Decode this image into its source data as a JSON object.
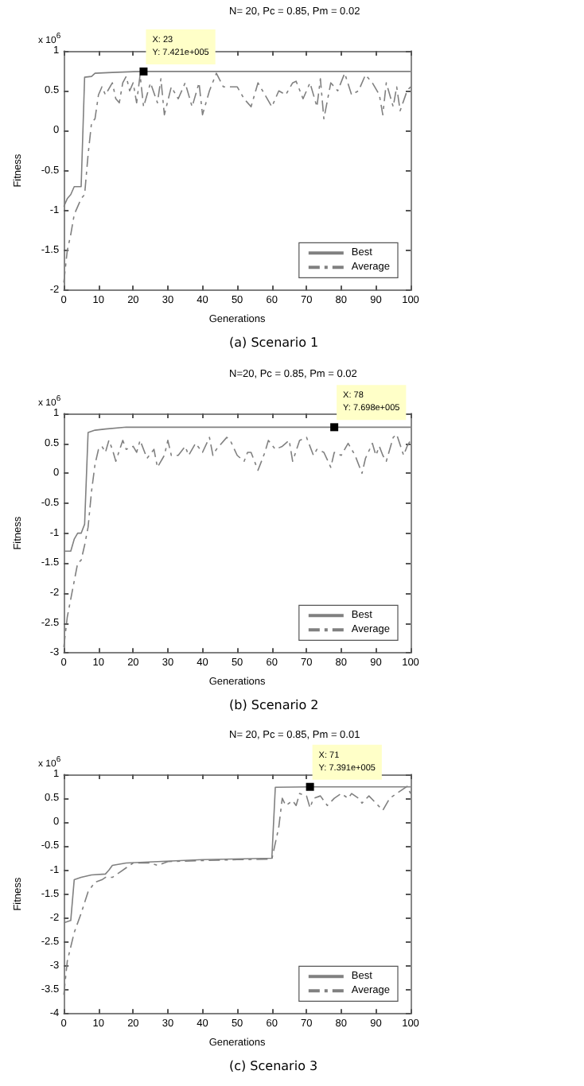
{
  "chart_data": [
    {
      "type": "line",
      "title": "N= 20, Pc = 0.85, Pm = 0.02",
      "subtitle": "(a) Scenario 1",
      "xlabel": "Generations",
      "ylabel": "Fitness",
      "annotations": [
        "x 10$^{6}$",
        {
          "text": "X: 23\nY: 7.421e+005",
          "x": 23,
          "y": 0.7421
        }
      ],
      "xlim": [
        0,
        100
      ],
      "xticks": [
        0,
        10,
        20,
        30,
        40,
        50,
        60,
        70,
        80,
        90,
        100
      ],
      "ylim": [
        -2,
        1
      ],
      "yticks": [
        -2,
        -1.5,
        -1,
        -0.5,
        0,
        0.5,
        1
      ],
      "grid": false,
      "legend": "bottom right",
      "marker": "none",
      "series": [
        {
          "name": "Best",
          "color": "#808080",
          "line_style": "solid",
          "x": [
            0,
            1,
            2,
            3,
            5,
            6,
            8,
            9,
            14,
            20,
            23,
            100
          ],
          "values": [
            -0.95,
            -0.85,
            -0.8,
            -0.7,
            -0.7,
            0.67,
            0.68,
            0.72,
            0.73,
            0.74,
            0.7421,
            0.7421
          ]
        },
        {
          "name": "Average",
          "color": "#808080",
          "line_style": "dashed",
          "x": [
            0,
            1,
            2,
            3,
            4,
            5,
            6,
            7,
            8,
            9,
            10,
            11,
            12,
            14,
            15,
            16,
            17,
            18,
            19,
            20,
            21,
            22,
            23,
            25,
            27,
            28,
            29,
            31,
            33,
            35,
            37,
            39,
            40,
            42,
            44,
            46,
            50,
            52,
            54,
            56,
            58,
            60,
            62,
            64,
            66,
            67,
            69,
            71,
            73,
            74,
            75,
            77,
            79,
            81,
            83,
            85,
            87,
            89,
            91,
            92,
            93,
            95,
            96,
            97,
            99,
            100
          ],
          "values": [
            -1.9,
            -1.5,
            -1.3,
            -1.05,
            -0.95,
            -0.85,
            -0.8,
            -0.3,
            0.1,
            0.15,
            0.45,
            0.55,
            0.45,
            0.6,
            0.4,
            0.35,
            0.6,
            0.68,
            0.5,
            0.6,
            0.35,
            0.7,
            0.3,
            0.6,
            0.35,
            0.65,
            0.2,
            0.55,
            0.4,
            0.6,
            0.3,
            0.6,
            0.2,
            0.5,
            0.72,
            0.55,
            0.55,
            0.4,
            0.3,
            0.6,
            0.45,
            0.3,
            0.5,
            0.45,
            0.6,
            0.62,
            0.4,
            0.6,
            0.3,
            0.65,
            0.15,
            0.6,
            0.5,
            0.72,
            0.45,
            0.5,
            0.7,
            0.6,
            0.45,
            0.2,
            0.6,
            0.3,
            0.55,
            0.25,
            0.5,
            0.55
          ]
        }
      ]
    },
    {
      "type": "line",
      "title": "N=20, Pc = 0.85, Pm = 0.02",
      "subtitle": "(b) Scenario 2",
      "xlabel": "Generations",
      "ylabel": "Fitness",
      "annotations": [
        "x 10$^{6}$",
        {
          "text": "X: 78\nY: 7.698e+005",
          "x": 78,
          "y": 0.7698
        }
      ],
      "xlim": [
        0,
        100
      ],
      "xticks": [
        0,
        10,
        20,
        30,
        40,
        50,
        60,
        70,
        80,
        90,
        100
      ],
      "ylim": [
        -3,
        1
      ],
      "yticks": [
        -3,
        -2.5,
        -2,
        -1.5,
        -1,
        -0.5,
        0,
        0.5,
        1
      ],
      "grid": false,
      "legend": "bottom right",
      "marker": "none",
      "series": [
        {
          "name": "Best",
          "color": "#808080",
          "line_style": "solid",
          "x": [
            0,
            2,
            3,
            4,
            5,
            6,
            7,
            9,
            12,
            18,
            78,
            100
          ],
          "values": [
            -1.3,
            -1.3,
            -1.1,
            -1.0,
            -1.0,
            -0.85,
            0.68,
            0.72,
            0.74,
            0.77,
            0.7698,
            0.7698
          ]
        },
        {
          "name": "Average",
          "color": "#808080",
          "line_style": "dashed",
          "x": [
            0,
            1,
            2,
            3,
            4,
            5,
            6,
            7,
            8,
            9,
            10,
            11,
            12,
            13,
            14,
            15,
            17,
            18,
            20,
            21,
            22,
            24,
            26,
            27,
            29,
            30,
            31,
            33,
            35,
            36,
            38,
            40,
            42,
            43,
            44,
            47,
            48,
            50,
            52,
            53,
            54,
            56,
            58,
            59,
            61,
            63,
            65,
            66,
            68,
            70,
            72,
            73,
            75,
            77,
            78,
            80,
            82,
            84,
            86,
            87,
            89,
            90,
            91,
            92,
            93,
            95,
            96,
            98,
            99,
            100
          ],
          "values": [
            -2.9,
            -2.4,
            -2.1,
            -1.8,
            -1.5,
            -1.45,
            -1.2,
            -0.9,
            -0.3,
            0.15,
            0.4,
            0.45,
            0.35,
            0.55,
            0.4,
            0.2,
            0.55,
            0.4,
            0.45,
            0.35,
            0.55,
            0.25,
            0.4,
            0.1,
            0.3,
            0.55,
            0.3,
            0.3,
            0.45,
            0.3,
            0.5,
            0.35,
            0.6,
            0.3,
            0.4,
            0.6,
            0.55,
            0.3,
            0.2,
            0.35,
            0.35,
            0.05,
            0.35,
            0.55,
            0.4,
            0.45,
            0.55,
            0.2,
            0.55,
            0.6,
            0.3,
            0.4,
            0.35,
            0.1,
            0.35,
            0.3,
            0.5,
            0.3,
            0.0,
            0.25,
            0.5,
            0.3,
            0.45,
            0.3,
            0.2,
            0.6,
            0.65,
            0.3,
            0.45,
            0.55
          ]
        }
      ]
    },
    {
      "type": "line",
      "title": "N= 20, Pc = 0.85, Pm = 0.01",
      "subtitle": "(c) Scenario 3",
      "xlabel": "Generations",
      "ylabel": "Fitness",
      "annotations": [
        "x 10$^{6}$",
        {
          "text": "X: 71\nY: 7.391e+005",
          "x": 71,
          "y": 0.7391
        }
      ],
      "xlim": [
        0,
        100
      ],
      "xticks": [
        0,
        10,
        20,
        30,
        40,
        50,
        60,
        70,
        80,
        90,
        100
      ],
      "ylim": [
        -4,
        1
      ],
      "yticks": [
        -4,
        -3.5,
        -3,
        -2.5,
        -2,
        -1.5,
        -1,
        -0.5,
        0,
        0.5,
        1
      ],
      "grid": false,
      "legend": "bottom right",
      "marker": "none",
      "series": [
        {
          "name": "Best",
          "color": "#808080",
          "line_style": "solid",
          "x": [
            0,
            2,
            3,
            5,
            8,
            12,
            13,
            14,
            18,
            40,
            60,
            61,
            71,
            100
          ],
          "values": [
            -2.1,
            -2.05,
            -1.2,
            -1.15,
            -1.1,
            -1.08,
            -1.0,
            -0.9,
            -0.85,
            -0.78,
            -0.75,
            0.73,
            0.7391,
            0.7391
          ]
        },
        {
          "name": "Average",
          "color": "#808080",
          "line_style": "dashed",
          "x": [
            0,
            1,
            3,
            5,
            7,
            9,
            11,
            12,
            14,
            16,
            18,
            20,
            25,
            27,
            30,
            40,
            50,
            60,
            62,
            63,
            64,
            66,
            67,
            68,
            70,
            71,
            72,
            74,
            76,
            78,
            80,
            82,
            83,
            85,
            86,
            88,
            90,
            92,
            94,
            96,
            98,
            99,
            100
          ],
          "values": [
            -3.6,
            -2.9,
            -2.3,
            -1.9,
            -1.45,
            -1.25,
            -1.2,
            -1.15,
            -1.15,
            -1.05,
            -0.95,
            -0.85,
            -0.85,
            -0.9,
            -0.82,
            -0.8,
            -0.78,
            -0.77,
            -0.1,
            0.5,
            0.35,
            0.45,
            0.35,
            0.6,
            0.55,
            0.3,
            0.5,
            0.55,
            0.35,
            0.5,
            0.6,
            0.5,
            0.6,
            0.5,
            0.4,
            0.55,
            0.4,
            0.25,
            0.5,
            0.6,
            0.7,
            0.75,
            0.6
          ]
        }
      ]
    }
  ]
}
